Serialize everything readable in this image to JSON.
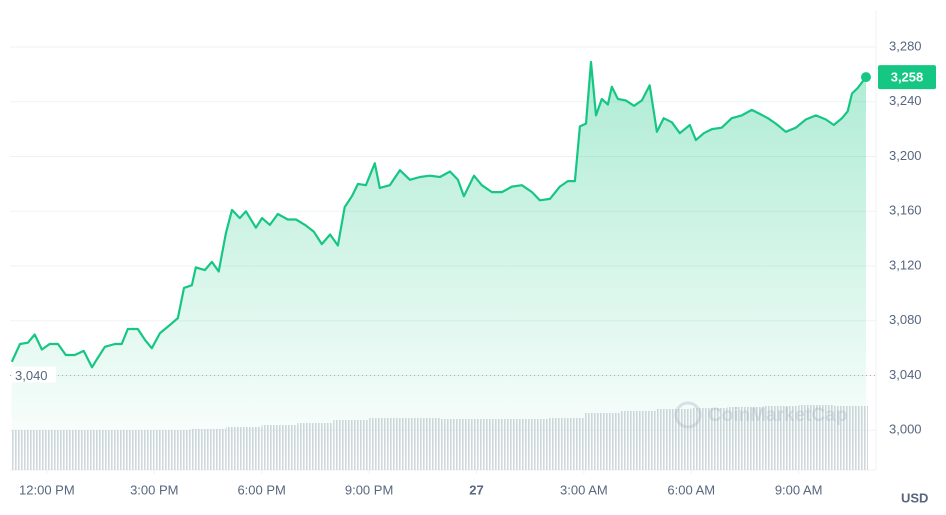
{
  "chart_data": {
    "type": "line",
    "watermark": "CoinMarketCap",
    "currency": "USD",
    "grid": true,
    "xlim": [
      -1.03,
      23.16
    ],
    "ylim": [
      2971,
      3307
    ],
    "y2lim": [
      0,
      460
    ],
    "yticks": [
      {
        "value": 3000,
        "label": "3,000"
      },
      {
        "value": 3040,
        "label": "3,040"
      },
      {
        "value": 3080,
        "label": "3,080"
      },
      {
        "value": 3120,
        "label": "3,120"
      },
      {
        "value": 3160,
        "label": "3,160"
      },
      {
        "value": 3200,
        "label": "3,200"
      },
      {
        "value": 3240,
        "label": "3,240"
      },
      {
        "value": 3280,
        "label": "3,280"
      }
    ],
    "xticks": [
      {
        "value": 0,
        "label": "12:00 PM"
      },
      {
        "value": 3,
        "label": "3:00 PM"
      },
      {
        "value": 6,
        "label": "6:00 PM"
      },
      {
        "value": 9,
        "label": "9:00 PM"
      },
      {
        "value": 12,
        "label": "27"
      },
      {
        "value": 15,
        "label": "3:00 AM"
      },
      {
        "value": 18,
        "label": "6:00 AM"
      },
      {
        "value": 21,
        "label": "9:00 AM"
      }
    ],
    "reference_line": {
      "value": 3040,
      "label": "3,040"
    },
    "last_price": {
      "value": 3258,
      "label": "3,258"
    },
    "series": [
      {
        "color": "#16c784",
        "x": [
          -0.98,
          -0.75,
          -0.53,
          -0.34,
          -0.14,
          0.08,
          0.31,
          0.53,
          0.78,
          1.03,
          1.26,
          1.4,
          1.62,
          1.9,
          2.09,
          2.26,
          2.54,
          2.74,
          2.93,
          3.16,
          3.44,
          3.66,
          3.83,
          4.05,
          4.16,
          4.41,
          4.61,
          4.8,
          5.0,
          5.17,
          5.39,
          5.56,
          5.84,
          6.01,
          6.23,
          6.45,
          6.73,
          6.96,
          7.21,
          7.46,
          7.68,
          7.91,
          8.13,
          8.32,
          8.52,
          8.69,
          8.91,
          9.16,
          9.3,
          9.58,
          9.86,
          10.14,
          10.42,
          10.7,
          10.98,
          11.26,
          11.48,
          11.65,
          11.93,
          12.15,
          12.43,
          12.71,
          12.99,
          13.27,
          13.55,
          13.77,
          14.05,
          14.33,
          14.55,
          14.75,
          14.89,
          15.06,
          15.2,
          15.34,
          15.5,
          15.67,
          15.78,
          15.95,
          16.17,
          16.4,
          16.62,
          16.84,
          17.04,
          17.23,
          17.46,
          17.68,
          17.96,
          18.13,
          18.35,
          18.58,
          18.85,
          19.13,
          19.41,
          19.69,
          19.92,
          20.14,
          20.36,
          20.64,
          20.92,
          21.2,
          21.48,
          21.76,
          21.98,
          22.21,
          22.37,
          22.49,
          22.65,
          22.88
        ],
        "values": [
          3050,
          3063,
          3064,
          3070,
          3059,
          3063,
          3063,
          3055,
          3055,
          3058,
          3046,
          3052,
          3061,
          3063,
          3063,
          3074,
          3074,
          3066,
          3060,
          3071,
          3077,
          3082,
          3104,
          3106,
          3119,
          3117,
          3123,
          3116,
          3144,
          3161,
          3155,
          3160,
          3148,
          3155,
          3150,
          3158,
          3154,
          3154,
          3150,
          3145,
          3136,
          3143,
          3135,
          3163,
          3171,
          3180,
          3179,
          3195,
          3177,
          3179,
          3190,
          3183,
          3185,
          3186,
          3185,
          3189,
          3183,
          3171,
          3186,
          3179,
          3174,
          3174,
          3178,
          3179,
          3174,
          3168,
          3169,
          3178,
          3182,
          3182,
          3222,
          3224,
          3269,
          3230,
          3242,
          3238,
          3251,
          3242,
          3241,
          3237,
          3241,
          3252,
          3218,
          3228,
          3225,
          3217,
          3223,
          3212,
          3217,
          3220,
          3221,
          3228,
          3230,
          3234,
          3231,
          3228,
          3224,
          3218,
          3221,
          3227,
          3230,
          3227,
          3223,
          3228,
          3233,
          3246,
          3250,
          3258
        ]
      },
      {
        "color": "#dfe2e7",
        "axis": "y2",
        "x": [
          -1,
          0,
          1,
          2,
          3,
          4,
          5,
          6,
          7,
          8,
          9,
          10,
          11,
          12,
          13,
          14,
          15,
          16,
          17,
          18,
          19,
          20,
          21,
          22
        ],
        "values": [
          40,
          40,
          40,
          40,
          40,
          41,
          43,
          45,
          47,
          50,
          52,
          52,
          51,
          51,
          51,
          52,
          57,
          59,
          61,
          62,
          63,
          64,
          65,
          64
        ]
      }
    ]
  }
}
